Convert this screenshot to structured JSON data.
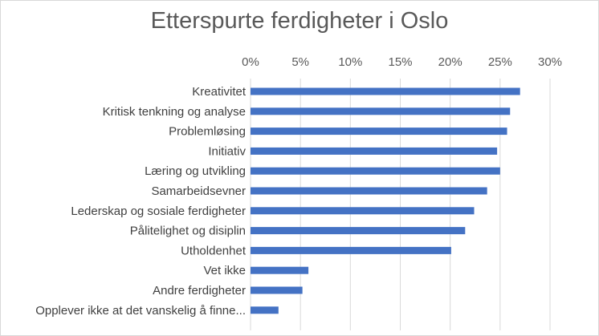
{
  "chart_data": {
    "type": "bar",
    "orientation": "horizontal",
    "title": "Etterspurte ferdigheter i Oslo",
    "xlabel": "",
    "ylabel": "",
    "xlim": [
      0,
      0.3
    ],
    "tick_values": [
      0,
      0.05,
      0.1,
      0.15,
      0.2,
      0.25,
      0.3
    ],
    "tick_labels": [
      "0%",
      "5%",
      "10%",
      "15%",
      "20%",
      "25%",
      "30%"
    ],
    "axis_position": "top",
    "grid": true,
    "legend": "none",
    "bar_color": "#4472c4",
    "grid_color": "#d9d9d9",
    "categories": [
      "Kreativitet",
      "Kritisk tenkning og analyse",
      "Problemløsing",
      "Initiativ",
      "Læring og utvikling",
      "Samarbeidsevner",
      "Lederskap og sosiale ferdigheter",
      "Pålitelighet og disiplin",
      "Utholdenhet",
      "Vet ikke",
      "Andre ferdigheter",
      "Opplever ikke at det vanskelig å finne..."
    ],
    "values": [
      0.27,
      0.26,
      0.257,
      0.247,
      0.25,
      0.237,
      0.224,
      0.215,
      0.201,
      0.058,
      0.052,
      0.028
    ]
  }
}
